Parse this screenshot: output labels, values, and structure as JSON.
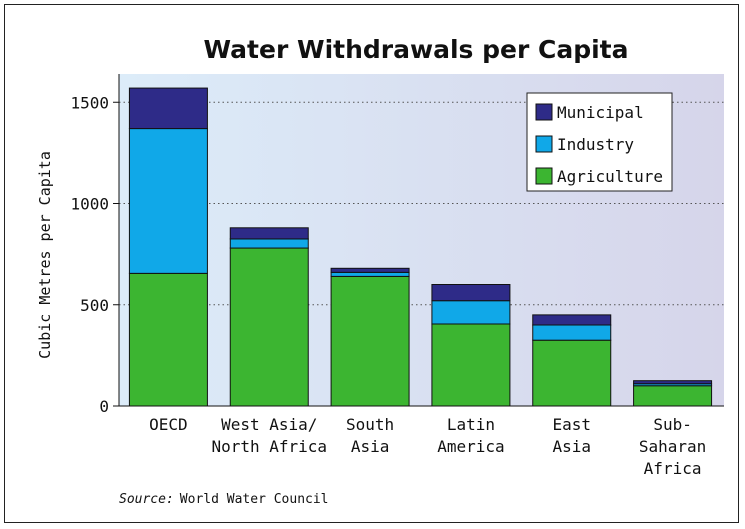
{
  "chart_data": {
    "type": "bar",
    "stacked": true,
    "title": "Water Withdrawals per Capita",
    "ylabel": "Cubic Metres per Capita",
    "xlabel": "",
    "ylim": [
      0,
      1700
    ],
    "yticks": [
      0,
      500,
      1000,
      1500
    ],
    "grid": "horizontal dotted",
    "legend_position": "top-right",
    "categories": [
      [
        "OECD"
      ],
      [
        "West Asia/",
        "North Africa"
      ],
      [
        "South",
        "Asia"
      ],
      [
        "Latin",
        "America"
      ],
      [
        "East",
        "Asia"
      ],
      [
        "Sub-",
        "Saharan",
        "Africa"
      ]
    ],
    "series": [
      {
        "name": "Agriculture",
        "color": "#3cb531",
        "values": [
          655,
          780,
          640,
          405,
          325,
          100
        ]
      },
      {
        "name": "Industry",
        "color": "#10a8e8",
        "values": [
          715,
          45,
          20,
          115,
          75,
          10
        ]
      },
      {
        "name": "Municipal",
        "color": "#2e2b88",
        "values": [
          200,
          55,
          20,
          80,
          50,
          15
        ]
      }
    ],
    "legend_order": [
      "Municipal",
      "Industry",
      "Agriculture"
    ],
    "source_label": "Source:",
    "source_text": "World Water Council"
  }
}
